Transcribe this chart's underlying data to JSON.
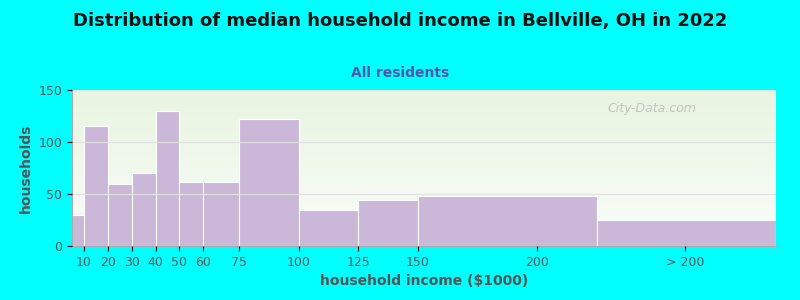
{
  "title": "Distribution of median household income in Bellville, OH in 2022",
  "subtitle": "All residents",
  "xlabel": "household income ($1000)",
  "ylabel": "households",
  "bar_lefts": [
    5,
    10,
    20,
    30,
    40,
    50,
    60,
    75,
    100,
    125,
    150,
    225
  ],
  "bar_widths": [
    5,
    10,
    10,
    10,
    10,
    10,
    15,
    25,
    25,
    25,
    75,
    75
  ],
  "bar_values": [
    30,
    115,
    60,
    70,
    130,
    62,
    62,
    122,
    35,
    44,
    48,
    25
  ],
  "bar_color": "#cbb8d8",
  "bar_edge_color": "#ffffff",
  "background_color": "#00ffff",
  "plot_bg_color": "#edf5e8",
  "ylim": [
    0,
    150
  ],
  "yticks": [
    0,
    50,
    100,
    150
  ],
  "xlim": [
    5,
    300
  ],
  "x_tick_positions": [
    10,
    20,
    30,
    40,
    50,
    60,
    75,
    100,
    125,
    150,
    200,
    262
  ],
  "x_tick_labels": [
    "10",
    "20",
    "30",
    "40",
    "50",
    "60",
    "75",
    "100",
    "125",
    "150",
    "200",
    "> 200"
  ],
  "title_fontsize": 13,
  "subtitle_fontsize": 10,
  "axis_label_fontsize": 10,
  "tick_fontsize": 9,
  "watermark": "City-Data.com",
  "grid_color": "#e0e0e0",
  "text_color": "#555555",
  "subtitle_color": "#5555aa",
  "title_color": "#111111"
}
